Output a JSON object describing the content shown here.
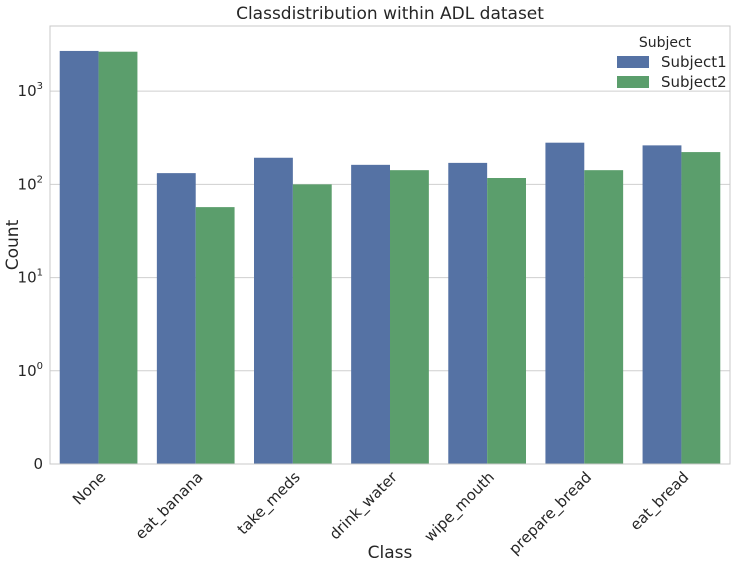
{
  "chart_data": {
    "type": "bar",
    "title": "Classdistribution within ADL dataset",
    "xlabel": "Class",
    "ylabel": "Count",
    "yscale": "symlog",
    "ylim": [
      0,
      5000
    ],
    "y_ticks": [
      {
        "value": 0,
        "base": "0",
        "exp": ""
      },
      {
        "value": 1,
        "base": "10",
        "exp": "0"
      },
      {
        "value": 10,
        "base": "10",
        "exp": "1"
      },
      {
        "value": 100,
        "base": "10",
        "exp": "2"
      },
      {
        "value": 1000,
        "base": "10",
        "exp": "3"
      }
    ],
    "categories": [
      "None",
      "eat_banana",
      "take_meds",
      "drink_water",
      "wipe_mouth",
      "prepare_bread",
      "eat_bread"
    ],
    "series": [
      {
        "name": "Subject1",
        "color": "#5572a4",
        "values": [
          2700,
          132,
          193,
          162,
          170,
          280,
          262
        ]
      },
      {
        "name": "Subject2",
        "color": "#5b9e6c",
        "values": [
          2650,
          57,
          100,
          142,
          117,
          142,
          222
        ]
      }
    ],
    "legend": {
      "title": "Subject",
      "position": "top-right"
    },
    "grid": true
  }
}
